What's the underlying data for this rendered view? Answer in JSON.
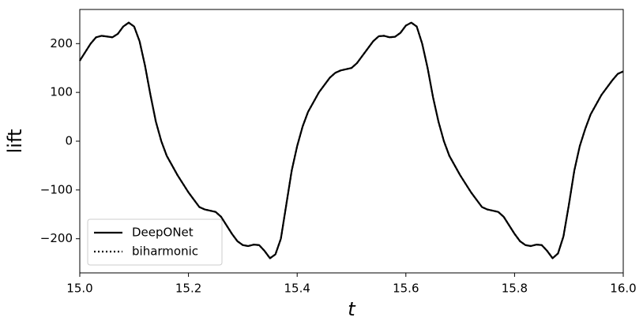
{
  "chart_data": {
    "type": "line",
    "xlabel": "t",
    "ylabel": "lift",
    "x": [
      15.0,
      15.02,
      15.03,
      15.04,
      15.06,
      15.07,
      15.08,
      15.09,
      15.1,
      15.11,
      15.12,
      15.13,
      15.14,
      15.15,
      15.16,
      15.18,
      15.2,
      15.22,
      15.23,
      15.25,
      15.26,
      15.28,
      15.29,
      15.3,
      15.31,
      15.32,
      15.33,
      15.34,
      15.35,
      15.36,
      15.37,
      15.38,
      15.39,
      15.4,
      15.41,
      15.42,
      15.44,
      15.46,
      15.47,
      15.48,
      15.5,
      15.51,
      15.52,
      15.54,
      15.55,
      15.56,
      15.57,
      15.58,
      15.59,
      15.6,
      15.61,
      15.62,
      15.63,
      15.64,
      15.65,
      15.66,
      15.67,
      15.68,
      15.7,
      15.72,
      15.74,
      15.75,
      15.77,
      15.78,
      15.8,
      15.81,
      15.82,
      15.83,
      15.84,
      15.85,
      15.86,
      15.87,
      15.88,
      15.89,
      15.9,
      15.91,
      15.92,
      15.93,
      15.94,
      15.96,
      15.98,
      15.99,
      16.0
    ],
    "series": [
      {
        "name": "DeepONet",
        "color": "#000000",
        "dash": "solid",
        "values": [
          165,
          200,
          213,
          216,
          213,
          220,
          235,
          243,
          235,
          205,
          155,
          95,
          40,
          0,
          -30,
          -70,
          -105,
          -135,
          -140,
          -145,
          -155,
          -190,
          -205,
          -213,
          -215,
          -212,
          -213,
          -225,
          -240,
          -232,
          -200,
          -130,
          -60,
          -10,
          30,
          60,
          100,
          130,
          140,
          145,
          150,
          160,
          175,
          205,
          215,
          216,
          213,
          214,
          222,
          237,
          243,
          235,
          200,
          150,
          90,
          40,
          0,
          -30,
          -70,
          -105,
          -135,
          -140,
          -145,
          -155,
          -190,
          -205,
          -213,
          -215,
          -212,
          -213,
          -225,
          -240,
          -230,
          -195,
          -130,
          -60,
          -10,
          25,
          55,
          95,
          125,
          138,
          143
        ]
      },
      {
        "name": "biharmonic",
        "color": "#000000",
        "dash": "dotted",
        "values": [
          165,
          200,
          213,
          216,
          213,
          220,
          235,
          243,
          235,
          205,
          155,
          95,
          40,
          0,
          -30,
          -70,
          -105,
          -135,
          -140,
          -145,
          -155,
          -190,
          -205,
          -213,
          -215,
          -212,
          -213,
          -225,
          -240,
          -232,
          -200,
          -130,
          -60,
          -10,
          30,
          60,
          100,
          130,
          140,
          145,
          150,
          160,
          175,
          205,
          215,
          216,
          213,
          214,
          222,
          237,
          243,
          235,
          200,
          150,
          90,
          40,
          0,
          -30,
          -70,
          -105,
          -135,
          -140,
          -145,
          -155,
          -190,
          -205,
          -213,
          -215,
          -212,
          -213,
          -225,
          -240,
          -230,
          -195,
          -130,
          -60,
          -10,
          25,
          55,
          95,
          125,
          138,
          143
        ]
      }
    ],
    "xlim": [
      15.0,
      16.0
    ],
    "xticks": [
      {
        "value": 15.0,
        "label": "15.0"
      },
      {
        "value": 15.2,
        "label": "15.2"
      },
      {
        "value": 15.4,
        "label": "15.4"
      },
      {
        "value": 15.6,
        "label": "15.6"
      },
      {
        "value": 15.8,
        "label": "15.8"
      },
      {
        "value": 16.0,
        "label": "16.0"
      }
    ],
    "ylim": [
      -270,
      270
    ],
    "yticks": [
      {
        "value": -200,
        "label": "−200"
      },
      {
        "value": -100,
        "label": "−100"
      },
      0,
      100,
      200
    ],
    "grid": false,
    "legend": "lower left"
  }
}
